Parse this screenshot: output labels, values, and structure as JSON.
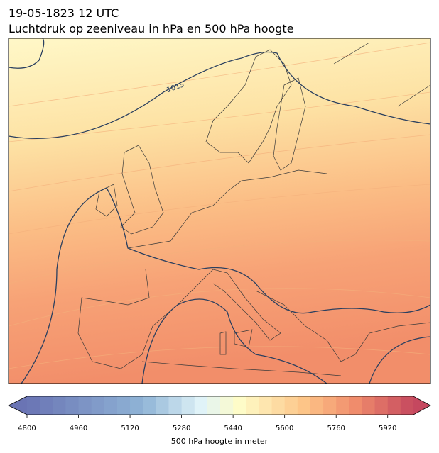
{
  "header": {
    "title": "19-05-1823 12 UTC",
    "subtitle": "Luchtdruk op zeeniveau in hPa en 500 hPa hoogte"
  },
  "map": {
    "isobar_label": "1015"
  },
  "colorbar": {
    "lim": [
      4800,
      6000
    ],
    "ticks": [
      4800,
      4960,
      5120,
      5280,
      5440,
      5600,
      5760,
      5920
    ],
    "label": "500 hPa hoogte in meter"
  }
}
